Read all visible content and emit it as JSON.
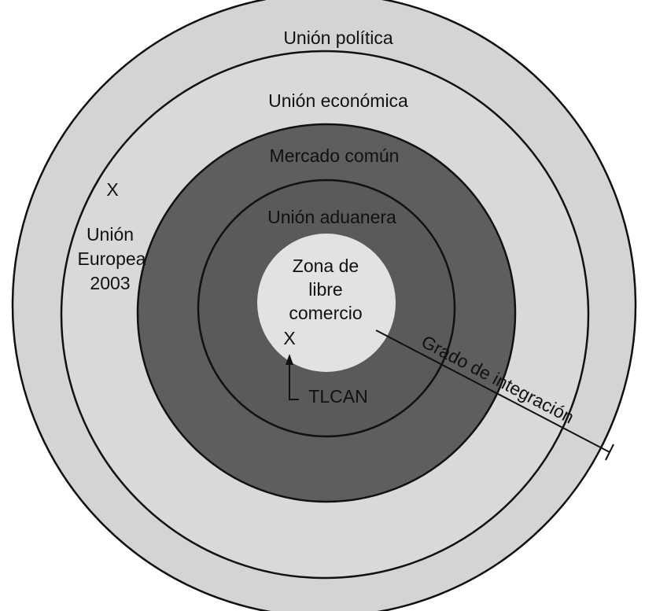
{
  "rings": [
    {
      "label": "Unión política"
    },
    {
      "label": "Unión económica"
    },
    {
      "label": "Mercado común"
    },
    {
      "label": "Unión aduanera"
    },
    {
      "label": [
        "Zona de",
        "libre",
        "comercio"
      ]
    }
  ],
  "markers": [
    {
      "symbol": "X",
      "label": [
        "Unión",
        "Europea",
        "2003"
      ]
    },
    {
      "symbol": "X",
      "label": "TLCAN"
    }
  ],
  "axis_label": "Grado de integración"
}
